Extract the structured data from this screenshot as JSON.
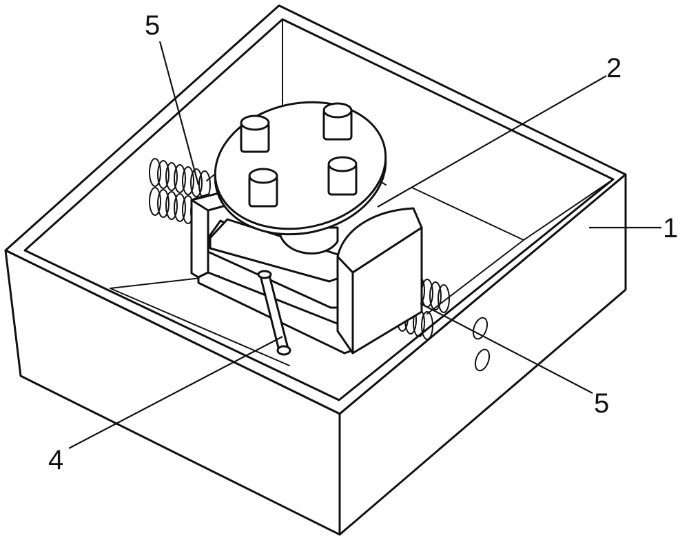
{
  "callouts": [
    {
      "id": "c1",
      "text": "1"
    },
    {
      "id": "c2",
      "text": "2"
    },
    {
      "id": "c4",
      "text": "4"
    },
    {
      "id": "c5a",
      "text": "5"
    },
    {
      "id": "c5b",
      "text": "5"
    }
  ]
}
